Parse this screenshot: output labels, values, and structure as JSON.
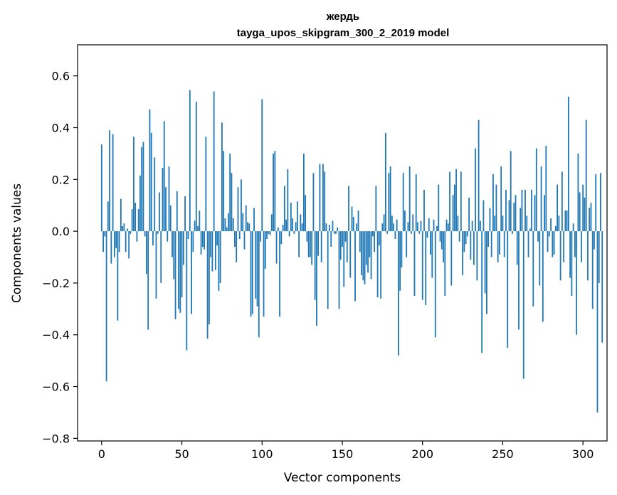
{
  "chart_data": {
    "type": "bar",
    "title": "жердь",
    "subtitle": "tayga_upos_skipgram_300_2_2019 model",
    "xlabel": "Vector components",
    "ylabel": "Components values",
    "xlim": [
      -15,
      315
    ],
    "ylim": [
      -0.81,
      0.72
    ],
    "x_ticks": [
      0,
      50,
      100,
      150,
      200,
      250,
      300
    ],
    "x_tick_labels": [
      "0",
      "50",
      "100",
      "150",
      "200",
      "250",
      "300"
    ],
    "y_ticks": [
      -0.8,
      -0.6,
      -0.4,
      -0.2,
      0.0,
      0.2,
      0.4,
      0.6
    ],
    "y_tick_labels": [
      "−0.8",
      "−0.6",
      "−0.4",
      "−0.2",
      "0.0",
      "0.2",
      "0.4",
      "0.6"
    ],
    "bar_color": "#1f77b4",
    "grid": false,
    "values": [
      0.335,
      -0.08,
      -0.02,
      -0.58,
      0.115,
      0.39,
      -0.125,
      0.375,
      -0.1,
      -0.065,
      -0.345,
      -0.08,
      0.125,
      0.02,
      0.03,
      -0.08,
      0.01,
      -0.105,
      -0.01,
      0.085,
      0.365,
      0.11,
      -0.04,
      0.085,
      0.215,
      0.325,
      0.345,
      -0.02,
      -0.165,
      -0.38,
      0.47,
      0.38,
      -0.055,
      0.285,
      -0.26,
      -0.01,
      0.15,
      -0.2,
      0.245,
      0.425,
      0.17,
      -0.04,
      0.25,
      0.1,
      -0.1,
      -0.185,
      -0.34,
      0.155,
      -0.3,
      -0.315,
      -0.255,
      -0.13,
      0.135,
      -0.46,
      -0.03,
      0.545,
      -0.32,
      -0.08,
      0.04,
      0.5,
      0.02,
      0.08,
      -0.09,
      -0.06,
      -0.07,
      0.365,
      -0.415,
      -0.36,
      -0.1,
      -0.155,
      0.54,
      -0.15,
      -0.055,
      -0.23,
      -0.2,
      0.42,
      0.31,
      0.05,
      0.015,
      0.07,
      0.3,
      0.225,
      0.05,
      -0.06,
      -0.12,
      0.17,
      -0.03,
      0.2,
      0.07,
      -0.07,
      0.1,
      0.035,
      0.03,
      -0.33,
      -0.32,
      0.09,
      -0.26,
      -0.29,
      -0.41,
      -0.04,
      0.51,
      -0.33,
      -0.145,
      -0.03,
      -0.01,
      -0.015,
      0.065,
      0.3,
      0.31,
      -0.125,
      0.015,
      -0.33,
      -0.05,
      0.025,
      0.175,
      0.045,
      0.24,
      -0.02,
      0.11,
      0.05,
      -0.01,
      0.035,
      0.115,
      -0.1,
      0.065,
      0.03,
      0.3,
      0.14,
      -0.04,
      -0.1,
      -0.1,
      -0.13,
      0.225,
      -0.265,
      -0.365,
      -0.095,
      0.26,
      -0.12,
      0.26,
      0.23,
      0.03,
      -0.3,
      0.025,
      -0.06,
      0.04,
      -0.01,
      -0.01,
      0.015,
      -0.3,
      -0.11,
      -0.06,
      -0.215,
      -0.04,
      -0.12,
      0.175,
      -0.18,
      0.095,
      0.055,
      -0.27,
      0.03,
      0.08,
      -0.08,
      -0.17,
      -0.19,
      -0.205,
      -0.13,
      -0.16,
      -0.1,
      -0.185,
      -0.02,
      -0.08,
      0.175,
      -0.255,
      -0.055,
      -0.26,
      0.03,
      0.065,
      0.38,
      -0.01,
      0.225,
      0.25,
      0.06,
      0.03,
      -0.03,
      0.045,
      -0.48,
      -0.23,
      -0.14,
      0.225,
      0.08,
      -0.1,
      0.035,
      0.25,
      -0.01,
      0.065,
      -0.25,
      0.22,
      0.035,
      -0.01,
      0.04,
      -0.265,
      0.16,
      -0.285,
      -0.025,
      0.05,
      -0.09,
      -0.18,
      0.045,
      -0.41,
      0.02,
      0.18,
      -0.04,
      -0.07,
      -0.12,
      -0.25,
      0.045,
      0.03,
      0.23,
      -0.21,
      0.14,
      0.18,
      0.24,
      0.06,
      -0.04,
      0.23,
      -0.17,
      -0.08,
      -0.05,
      -0.02,
      0.13,
      -0.11,
      0.04,
      -0.13,
      0.32,
      -0.19,
      0.43,
      0.04,
      -0.47,
      0.12,
      -0.24,
      -0.32,
      -0.06,
      0.09,
      -0.1,
      0.22,
      0.06,
      0.18,
      -0.12,
      -0.09,
      0.25,
      0.06,
      -0.1,
      0.16,
      -0.45,
      0.12,
      0.31,
      -0.01,
      0.11,
      0.14,
      -0.13,
      -0.38,
      0.09,
      0.16,
      -0.57,
      0.16,
      0.06,
      -0.1,
      0.01,
      0.16,
      -0.29,
      0.14,
      0.32,
      -0.04,
      -0.21,
      0.25,
      -0.35,
      0.14,
      0.33,
      -0.08,
      -0.02,
      0.05,
      -0.1,
      -0.09,
      0.02,
      0.18,
      0.06,
      -0.19,
      0.23,
      -0.12,
      0.08,
      0.08,
      0.52,
      -0.18,
      -0.25,
      0.03,
      -0.1,
      -0.4,
      0.3,
      0.15,
      -0.12,
      0.18,
      0.13,
      0.43,
      -0.19,
      0.09,
      0.11,
      -0.3,
      -0.07,
      0.22,
      -0.7,
      -0.2,
      0.225,
      -0.43
    ]
  }
}
